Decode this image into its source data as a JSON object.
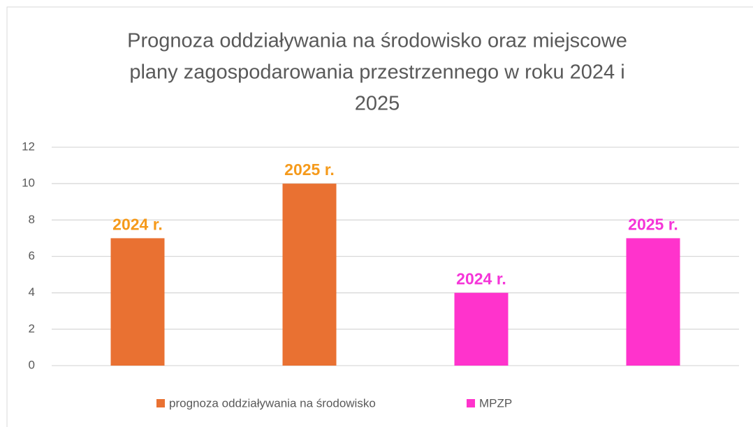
{
  "chart_data": {
    "type": "bar",
    "title": [
      "Prognoza oddziaływania na środowisko oraz miejscowe",
      "plany zagospodarowania przestrzennego w roku 2024 i",
      "2025"
    ],
    "categories": [
      null,
      null,
      null,
      null
    ],
    "series": [
      {
        "name": "prognoza oddziaływania na środowisko",
        "color": "#e97132",
        "label_color": "#f59a1b",
        "values": [
          7,
          10,
          null,
          null
        ],
        "value_labels": [
          "2024 r.",
          "2025 r.",
          null,
          null
        ]
      },
      {
        "name": "MPZP",
        "color": "#ff33cc",
        "label_color": "#f535d8",
        "values": [
          null,
          null,
          4,
          7
        ],
        "value_labels": [
          null,
          null,
          "2024 r.",
          "2025 r."
        ]
      }
    ],
    "ylim": [
      0,
      12
    ],
    "yticks": [
      0,
      2,
      4,
      6,
      8,
      10,
      12
    ],
    "grid": true,
    "legend": "bottom"
  }
}
